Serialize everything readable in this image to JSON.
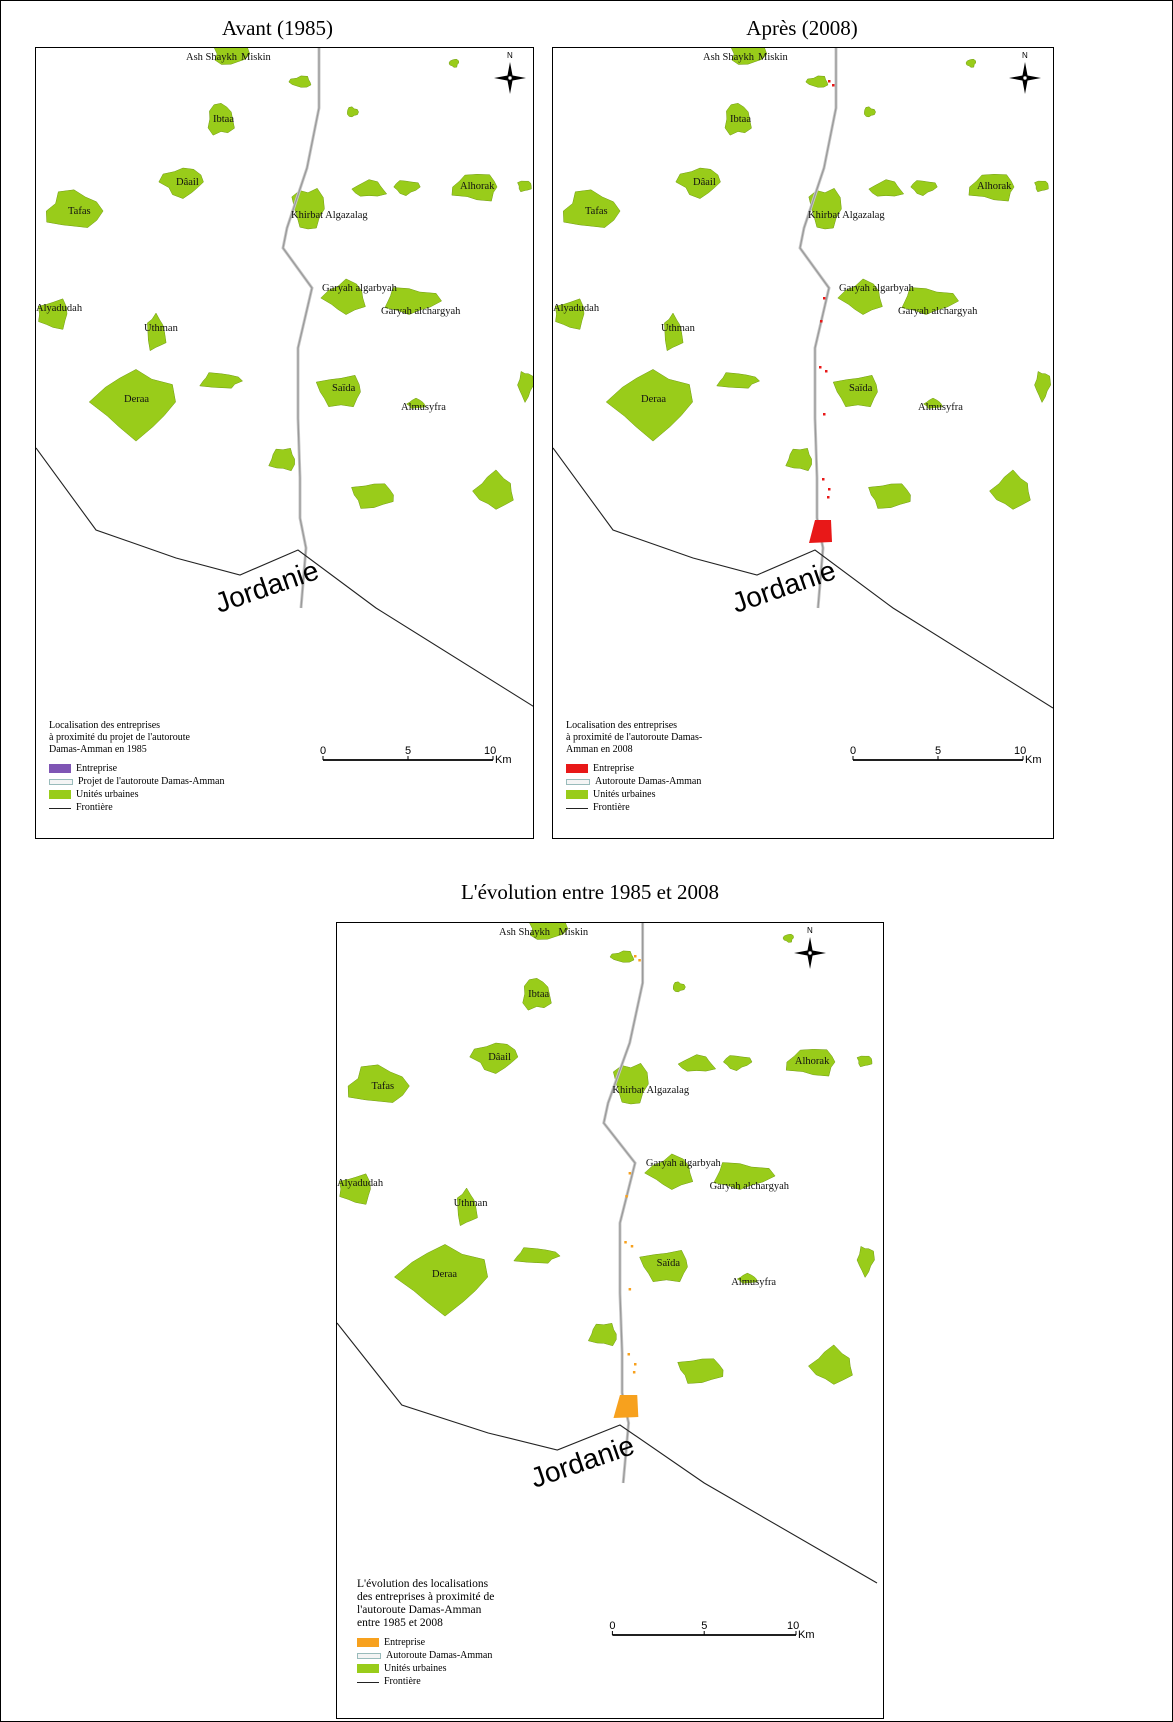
{
  "titles": {
    "before": "Avant (1985)",
    "after": "Après (2008)",
    "evolution": "L'évolution entre 1985 et 2008"
  },
  "places": {
    "ash_shaykh": "Ash Shaykh",
    "miskin": "Miskin",
    "ibtaa": "Ibtaa",
    "daail": "Dâail",
    "tafas": "Tafas",
    "khirbat": "Khirbat Algazalag",
    "alhorak": "Alhorak",
    "garyah_garb": "Garyah algarbyah",
    "garyah_charg": "Garyah alchargyah",
    "alyadudah": "Alyadudah",
    "uthman": "Uthman",
    "deraa": "Deraa",
    "saida": "Saïda",
    "almusyfra": "Almusyfra",
    "jordanie": "Jordanie"
  },
  "compass_n": "N",
  "legends": {
    "before": {
      "title": [
        "Localisation des entreprises",
        "à proximité du projet de l'autoroute",
        "Damas-Amman en 1985"
      ],
      "entreprise": "Entreprise",
      "road": "Projet de l'autoroute Damas-Amman",
      "urban": "Unités urbaines",
      "border": "Frontière"
    },
    "after": {
      "title": [
        "Localisation des entreprises",
        "à proximité de l'autoroute Damas-",
        "Amman en 2008"
      ],
      "entreprise": "Entreprise",
      "road": "Autoroute Damas-Amman",
      "urban": "Unités urbaines",
      "border": "Frontière"
    },
    "evolution": {
      "title": [
        "L'évolution des localisations",
        "des entreprises à proximité de",
        "l'autoroute Damas-Amman",
        "entre 1985 et 2008"
      ],
      "entreprise": "Entreprise",
      "road": "Autoroute Damas-Amman",
      "urban": "Unités urbaines",
      "border": "Frontière"
    }
  },
  "scale": {
    "t0": "0",
    "t5": "5",
    "t10": "10",
    "unit": "Km"
  },
  "colors": {
    "urban": "#99cc1a",
    "entreprise_1985": "#7f55b4",
    "entreprise_2008": "#e81818",
    "entreprise_evolution": "#f7a11e",
    "road": "#9a9a9a",
    "border": "#222222"
  }
}
